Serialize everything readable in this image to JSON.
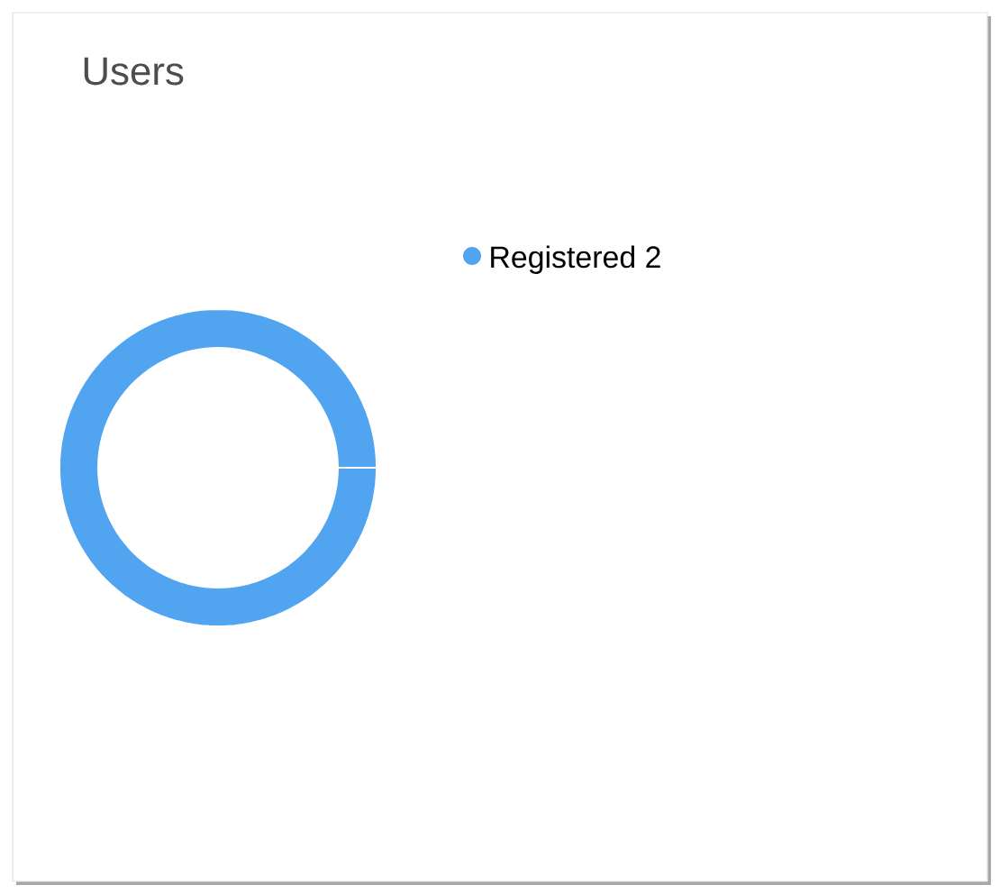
{
  "chart_data": {
    "type": "donut",
    "title": "Users",
    "categories": [
      "Registered"
    ],
    "values": [
      2
    ],
    "colors": [
      "#51a4ef"
    ],
    "legend": "top right",
    "data_labels": true
  }
}
